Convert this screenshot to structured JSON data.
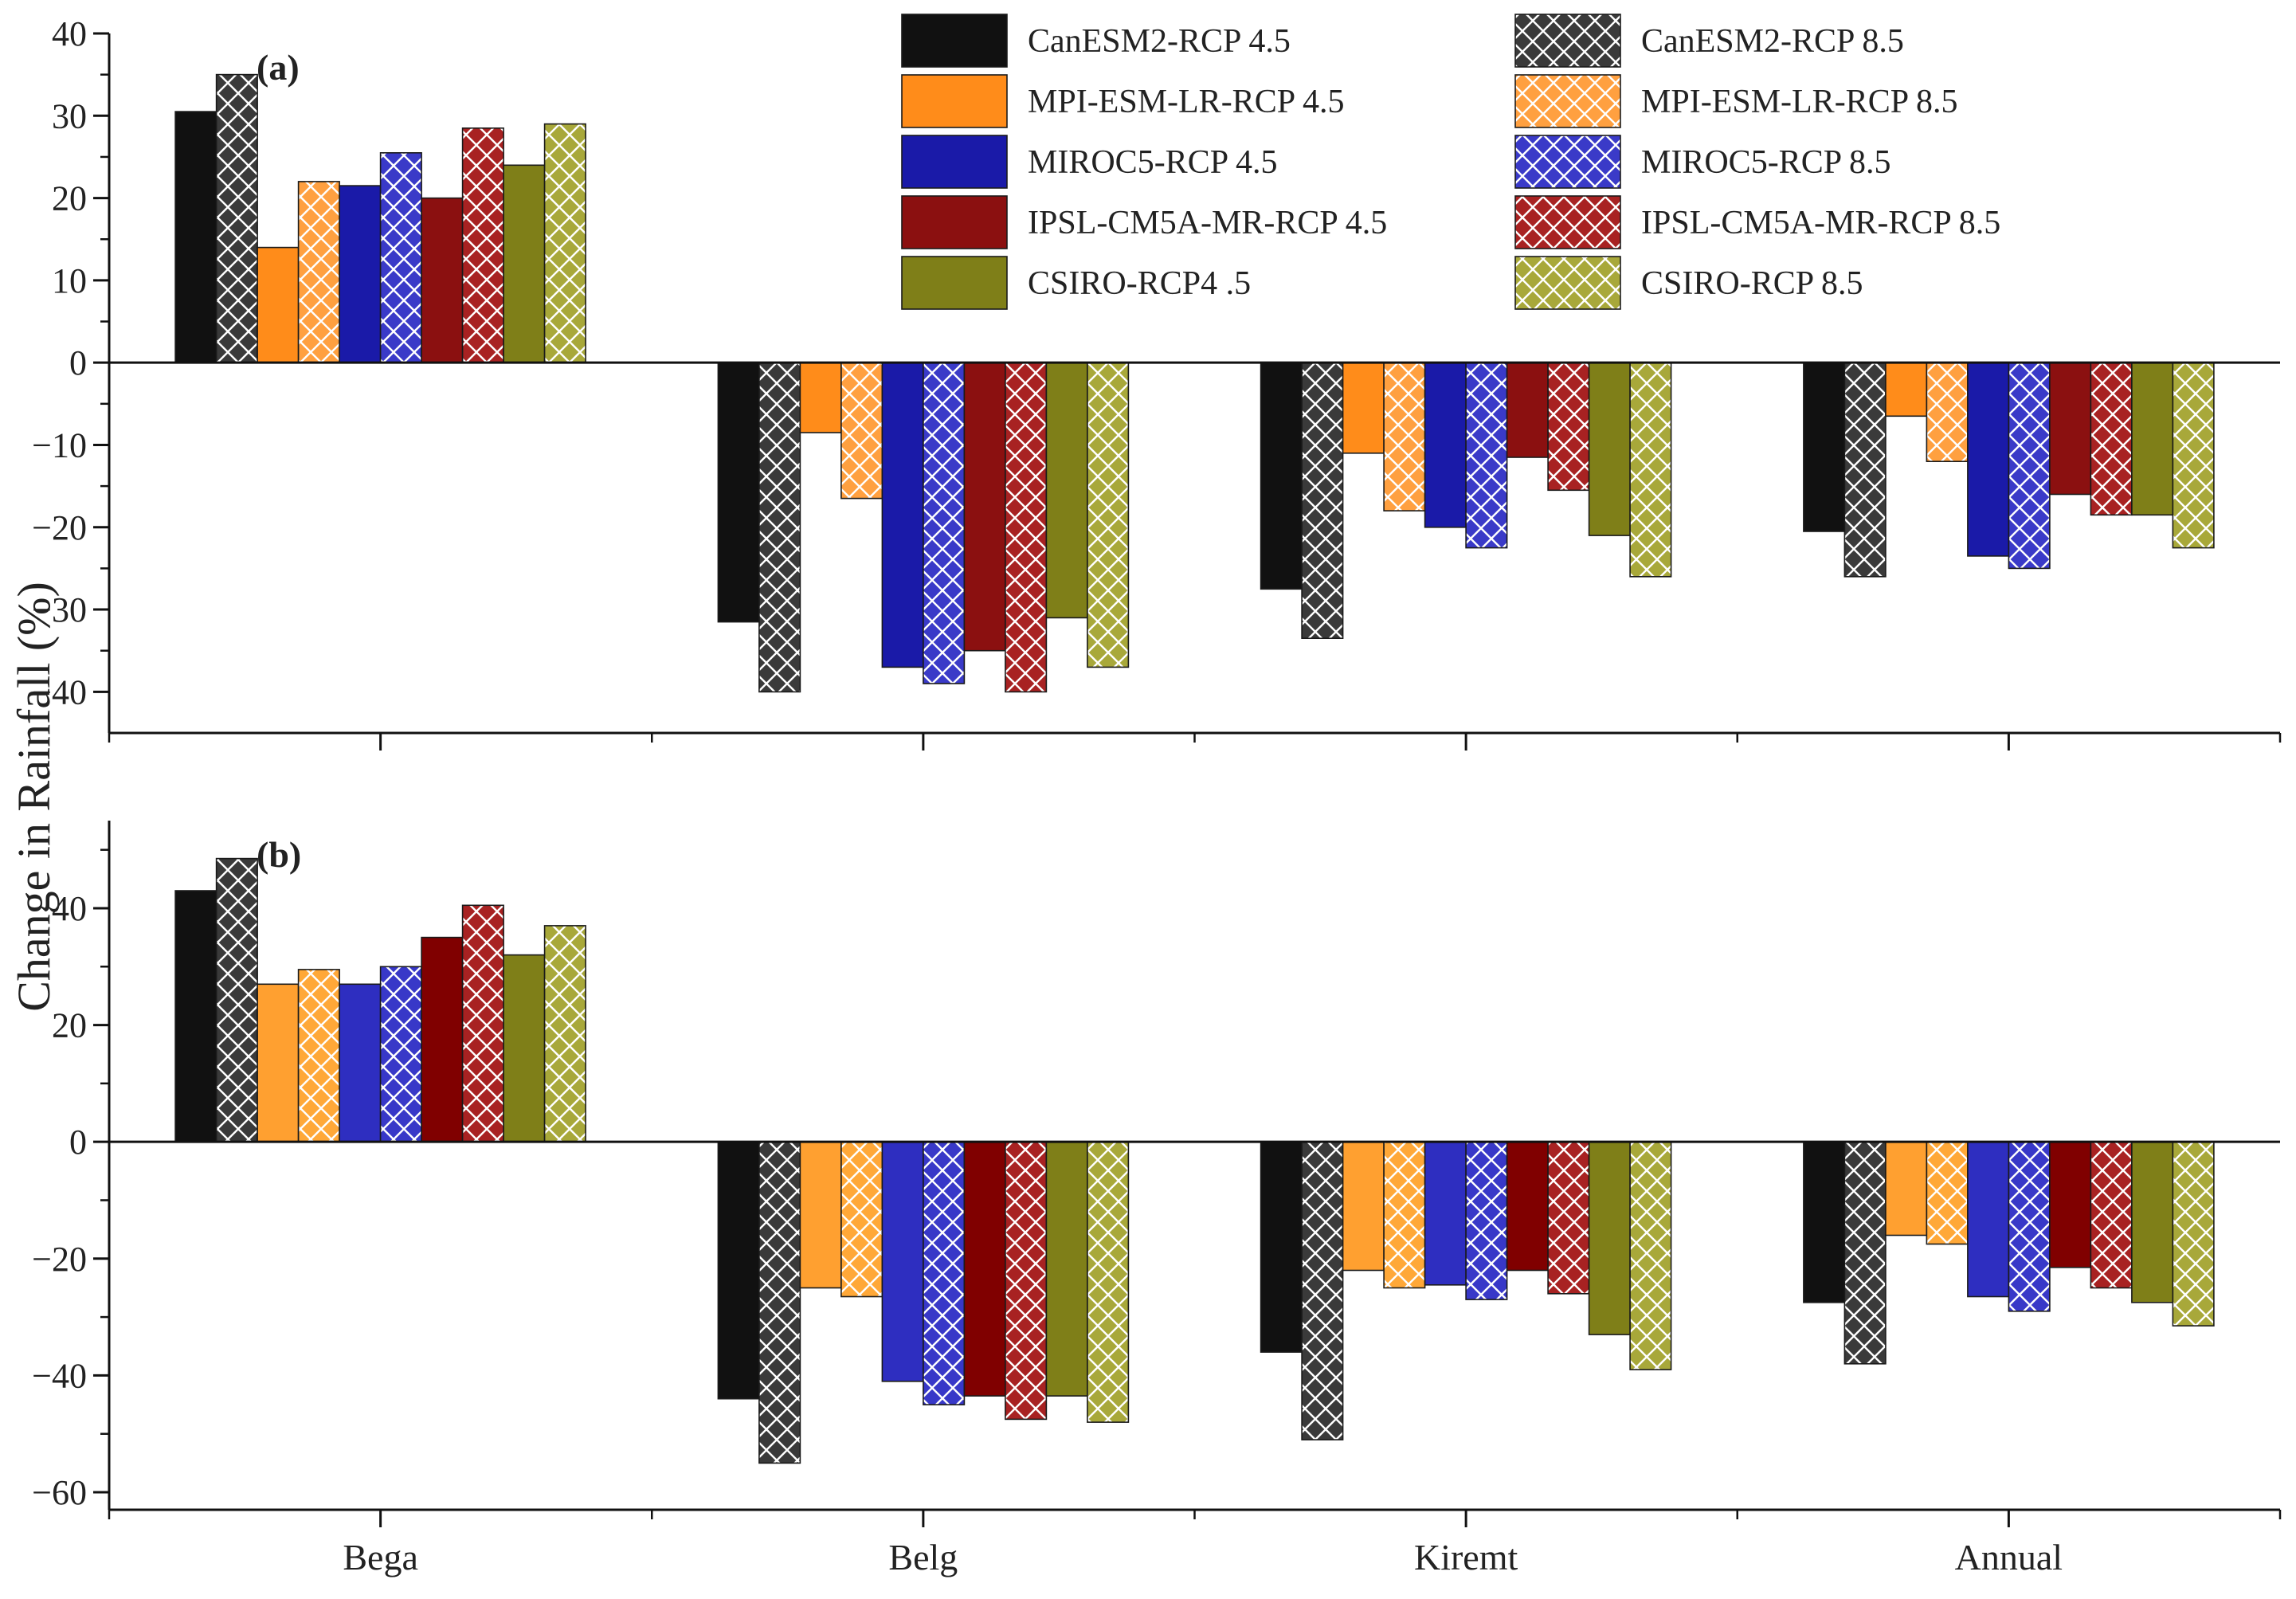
{
  "chart_data": [
    {
      "type": "bar",
      "panel_label": "(a)",
      "categories": [
        "Bega",
        "Belg",
        "Kiremt",
        "Annual"
      ],
      "ylim": [
        -45,
        40
      ],
      "yticks": [
        -40,
        -30,
        -20,
        -10,
        0,
        10,
        20,
        30,
        40
      ],
      "ylabel": "Change in Rainfall (%)",
      "series": [
        {
          "name": "CanESM2-RCP 4.5",
          "values": [
            30.5,
            -31.5,
            -27.5,
            -20.5
          ]
        },
        {
          "name": "CanESM2-RCP 8.5",
          "values": [
            35,
            -40,
            -33.5,
            -26
          ]
        },
        {
          "name": "MPI-ESM-LR-RCP 4.5",
          "values": [
            14,
            -8.5,
            -11,
            -6.5
          ]
        },
        {
          "name": "MPI-ESM-LR-RCP 8.5",
          "values": [
            22,
            -16.5,
            -18,
            -12
          ]
        },
        {
          "name": "MIROC5-RCP 4.5",
          "values": [
            21.5,
            -37,
            -20,
            -23.5
          ]
        },
        {
          "name": "MIROC5-RCP 8.5",
          "values": [
            25.5,
            -39,
            -22.5,
            -25
          ]
        },
        {
          "name": "IPSL-CM5A-MR-RCP 4.5",
          "values": [
            20,
            -35,
            -11.5,
            -16
          ]
        },
        {
          "name": "IPSL-CM5A-MR-RCP 8.5",
          "values": [
            28.5,
            -40,
            -15.5,
            -18.5
          ]
        },
        {
          "name": "CSIRO-RCP4 .5",
          "values": [
            24,
            -31,
            -21,
            -18.5
          ]
        },
        {
          "name": "CSIRO-RCP 8.5",
          "values": [
            29,
            -37,
            -26,
            -22.5
          ]
        }
      ]
    },
    {
      "type": "bar",
      "panel_label": "(b)",
      "categories": [
        "Bega",
        "Belg",
        "Kiremt",
        "Annual"
      ],
      "ylim": [
        -63,
        55
      ],
      "yticks": [
        -60,
        -40,
        -20,
        0,
        20,
        40
      ],
      "ylabel": "Change in Rainfall (%)",
      "series": [
        {
          "name": "CanESM2-RCP 4.5",
          "values": [
            43,
            -44,
            -36,
            -27.5
          ]
        },
        {
          "name": "CanESM2-RCP 8.5",
          "values": [
            48.5,
            -55,
            -51,
            -38
          ]
        },
        {
          "name": "MPI-ESM-LR-RCP 4.5",
          "values": [
            27,
            -25,
            -22,
            -16
          ]
        },
        {
          "name": "MPI-ESM-LR-RCP 8.5",
          "values": [
            29.5,
            -26.5,
            -25,
            -17.5
          ]
        },
        {
          "name": "MIROC5-RCP 4.5",
          "values": [
            27,
            -41,
            -24.5,
            -26.5
          ]
        },
        {
          "name": "MIROC5-RCP 8.5",
          "values": [
            30,
            -45,
            -27,
            -29
          ]
        },
        {
          "name": "IPSL-CM5A-MR-RCP 4.5",
          "values": [
            35,
            -43.5,
            -22,
            -21.5
          ]
        },
        {
          "name": "IPSL-CM5A-MR-RCP 8.5",
          "values": [
            40.5,
            -47.5,
            -26,
            -25
          ]
        },
        {
          "name": "CSIRO-RCP4 .5",
          "values": [
            32,
            -43.5,
            -33,
            -27.5
          ]
        },
        {
          "name": "CSIRO-RCP 8.5",
          "values": [
            37,
            -48,
            -39,
            -31.5
          ]
        }
      ]
    }
  ],
  "legend": {
    "placement": "top-right of panel (a)",
    "items": [
      {
        "label": "CanESM2-RCP 4.5",
        "color": "#111111",
        "hatched": false
      },
      {
        "label": "CanESM2-RCP 8.5",
        "color": "#3a3a3a",
        "hatched": true
      },
      {
        "label": "MPI-ESM-LR-RCP 4.5",
        "color": "#ff8c1a",
        "hatched": false
      },
      {
        "label": "MPI-ESM-LR-RCP 8.5",
        "color": "#ffa040",
        "hatched": true
      },
      {
        "label": "MIROC5-RCP 4.5",
        "color": "#1a1aa8",
        "hatched": false
      },
      {
        "label": "MIROC5-RCP 8.5",
        "color": "#3a3ac8",
        "hatched": true
      },
      {
        "label": "IPSL-CM5A-MR-RCP 4.5",
        "color": "#8b1010",
        "hatched": false
      },
      {
        "label": "IPSL-CM5A-MR-RCP 8.5",
        "color": "#a82222",
        "hatched": true
      },
      {
        "label": "CSIRO-RCP4 .5",
        "color": "#7f7f18",
        "hatched": false
      },
      {
        "label": "CSIRO-RCP 8.5",
        "color": "#a8a83a",
        "hatched": true
      }
    ]
  },
  "panel_colors_b": [
    "#111111",
    "#3a3a3a",
    "#ffa030",
    "#ffa838",
    "#2e2ec0",
    "#3838c8",
    "#800000",
    "#a82222",
    "#7f7f18",
    "#a8a83a"
  ]
}
